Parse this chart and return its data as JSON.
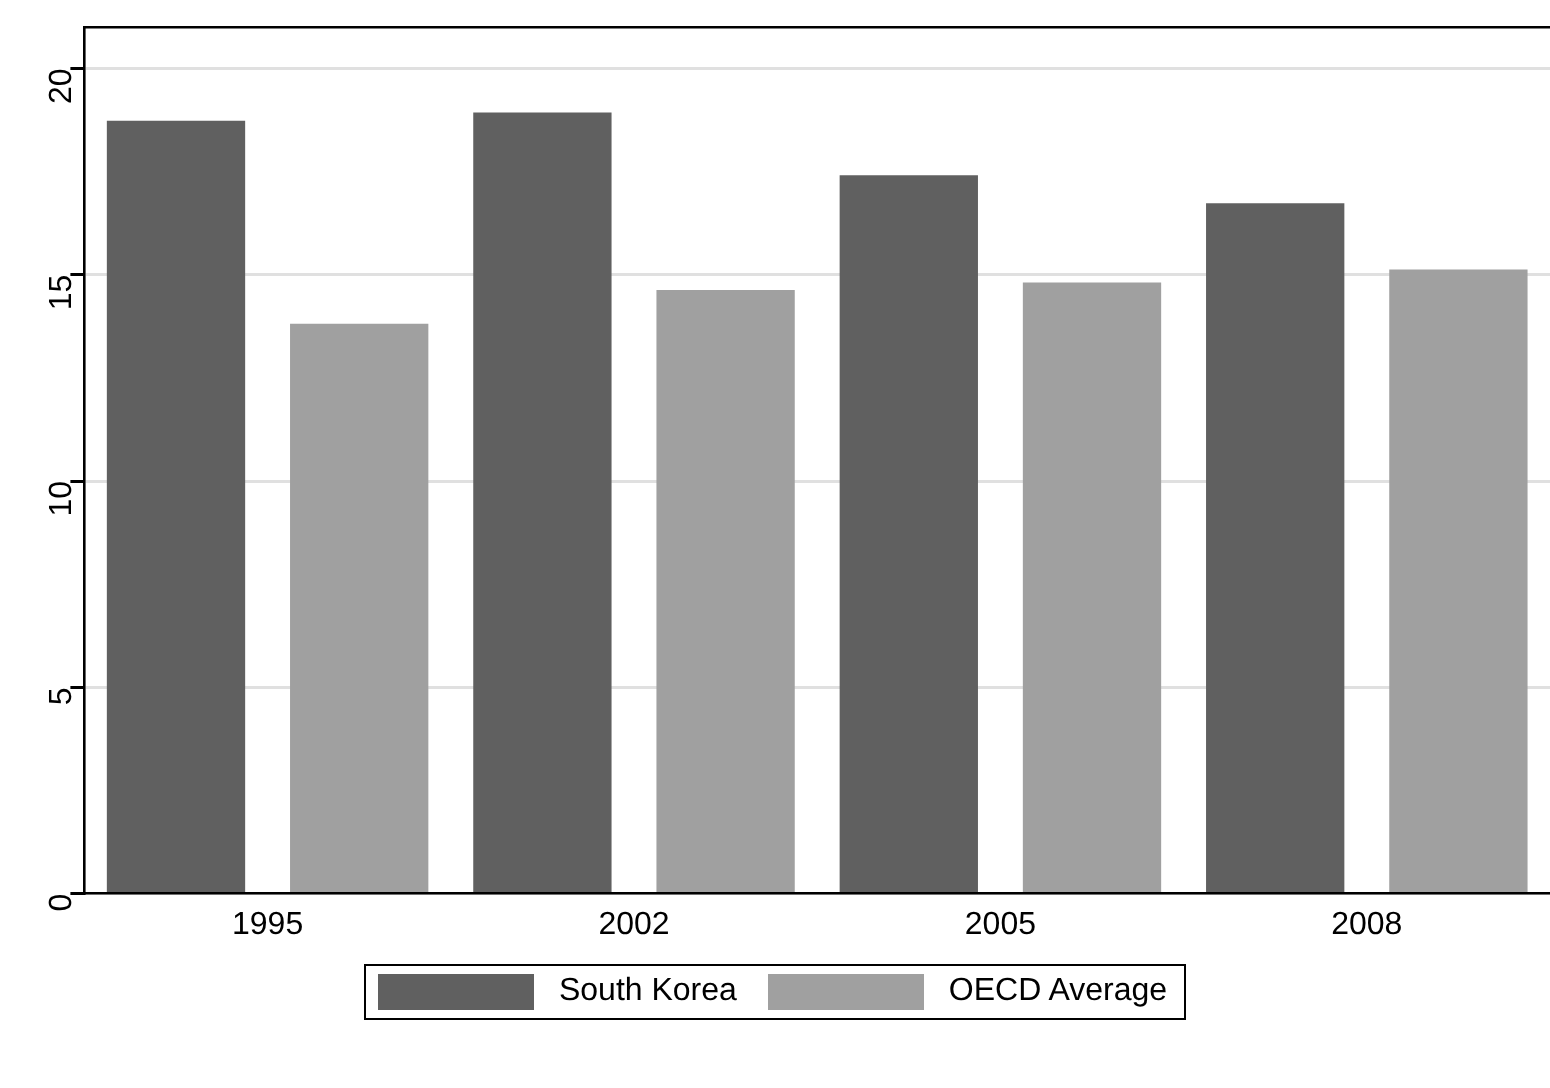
{
  "chart_data": {
    "type": "bar",
    "categories": [
      "1995",
      "2002",
      "2005",
      "2008"
    ],
    "series": [
      {
        "name": "South Korea",
        "color": "#606060",
        "values": [
          18.73,
          18.93,
          17.41,
          16.73
        ]
      },
      {
        "name": "OECD Average",
        "color": "#a0a0a0",
        "values": [
          13.81,
          14.63,
          14.81,
          15.13
        ]
      }
    ],
    "ylim": [
      0,
      21
    ],
    "yticks": [
      0,
      5,
      10,
      15,
      20
    ],
    "grid": "y",
    "legend": "bottom"
  }
}
